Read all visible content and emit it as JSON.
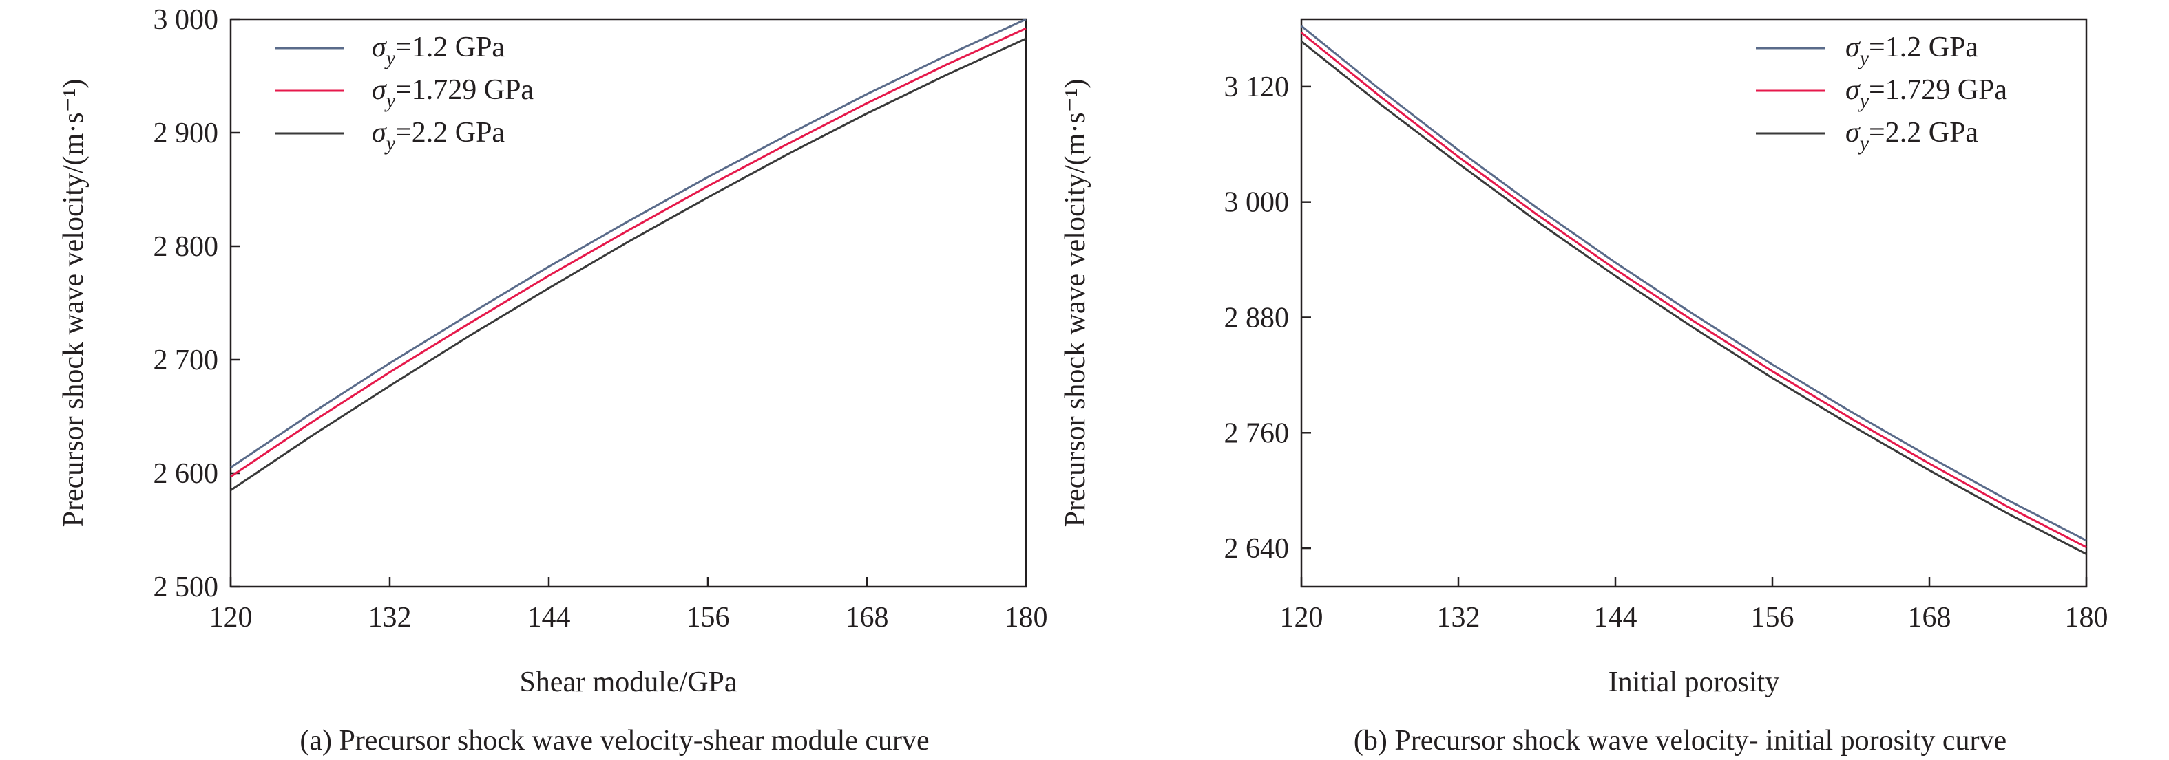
{
  "chart_data": [
    {
      "type": "line",
      "caption": "(a) Precursor shock wave velocity-shear module curve",
      "xlabel": "Shear module/GPa",
      "ylabel": "Precursor shock wave velocity/(m·s⁻¹)",
      "xlim": [
        120,
        180
      ],
      "ylim": [
        2500,
        3000
      ],
      "xticks": [
        120,
        132,
        144,
        156,
        168,
        180
      ],
      "xtick_labels": [
        "120",
        "132",
        "144",
        "156",
        "168",
        "180"
      ],
      "yticks": [
        2500,
        2600,
        2700,
        2800,
        2900,
        3000
      ],
      "ytick_labels": [
        "2 500",
        "2 600",
        "2 700",
        "2 800",
        "2 900",
        "3 000"
      ],
      "grid": false,
      "legend_position": "top-left",
      "x": [
        120,
        126,
        132,
        138,
        144,
        150,
        156,
        162,
        168,
        174,
        180
      ],
      "series": [
        {
          "symbol": "σ",
          "sub": "y",
          "value_text": "=1.2 GPa",
          "color": "#5a6b8a",
          "values": [
            2605,
            2652,
            2697,
            2740,
            2782,
            2822,
            2861,
            2898,
            2934,
            2968,
            3000
          ]
        },
        {
          "symbol": "σ",
          "sub": "y",
          "value_text": "=1.729 GPa",
          "color": "#e6194b",
          "values": [
            2597,
            2644,
            2689,
            2732,
            2774,
            2814,
            2853,
            2890,
            2926,
            2960,
            2992
          ]
        },
        {
          "symbol": "σ",
          "sub": "y",
          "value_text": "=2.2 GPa",
          "color": "#3a3a3a",
          "values": [
            2585,
            2632,
            2677,
            2721,
            2763,
            2804,
            2843,
            2881,
            2917,
            2951,
            2983
          ]
        }
      ]
    },
    {
      "type": "line",
      "caption": "(b) Precursor shock wave velocity- initial porosity curve",
      "xlabel": "Initial porosity",
      "ylabel": "Precursor shock wave velocity/(m·s⁻¹)",
      "xlim": [
        120,
        180
      ],
      "ylim": [
        2600,
        3190
      ],
      "xticks": [
        120,
        132,
        144,
        156,
        168,
        180
      ],
      "xtick_labels": [
        "120",
        "132",
        "144",
        "156",
        "168",
        "180"
      ],
      "yticks": [
        2640,
        2760,
        2880,
        3000,
        3120
      ],
      "ytick_labels": [
        "2 640",
        "2 760",
        "2 880",
        "3 000",
        "3 120"
      ],
      "grid": false,
      "legend_position": "top-right",
      "x": [
        120,
        126,
        132,
        138,
        144,
        150,
        156,
        162,
        168,
        174,
        180
      ],
      "series": [
        {
          "symbol": "σ",
          "sub": "y",
          "value_text": "=1.2 GPa",
          "color": "#5a6b8a",
          "values": [
            3183,
            3117,
            3054,
            2994,
            2937,
            2883,
            2831,
            2782,
            2735,
            2690,
            2648
          ]
        },
        {
          "symbol": "σ",
          "sub": "y",
          "value_text": "=1.729 GPa",
          "color": "#e6194b",
          "values": [
            3176,
            3110,
            3047,
            2987,
            2930,
            2876,
            2824,
            2775,
            2728,
            2683,
            2641
          ]
        },
        {
          "symbol": "σ",
          "sub": "y",
          "value_text": "=2.2 GPa",
          "color": "#3a3a3a",
          "values": [
            3167,
            3102,
            3040,
            2980,
            2923,
            2869,
            2817,
            2768,
            2721,
            2676,
            2634
          ]
        }
      ]
    }
  ]
}
